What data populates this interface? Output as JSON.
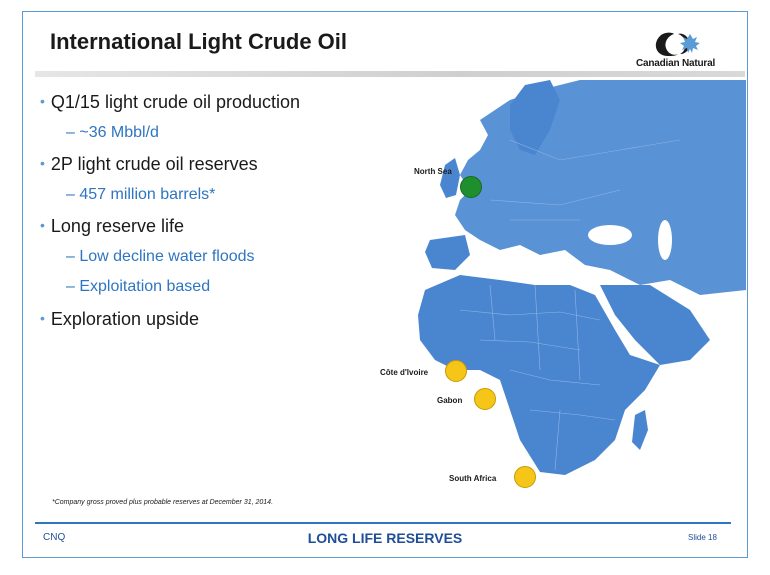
{
  "slide": {
    "title": "International Light Crude Oil",
    "logo_text": "Canadian Natural",
    "bullets": [
      {
        "text": "Q1/15 light crude oil production",
        "sub": [
          "~36 Mbbl/d"
        ]
      },
      {
        "text": "2P light crude oil reserves",
        "sub": [
          "457 million barrels*"
        ]
      },
      {
        "text": "Long reserve life",
        "sub": [
          "Low decline water floods",
          "Exploitation based"
        ]
      },
      {
        "text": "Exploration upside",
        "sub": []
      }
    ],
    "footnote": "*Company gross proved plus probable reserves at December 31, 2014.",
    "footer": {
      "left": "CNQ",
      "center": "LONG LIFE RESERVES",
      "right": "Slide 18"
    }
  },
  "map": {
    "locations": [
      {
        "name": "North Sea",
        "status": "producing",
        "color": "#1f8f2e"
      },
      {
        "name": "Côte d'Ivoire",
        "status": "other",
        "color": "#f5c518"
      },
      {
        "name": "Gabon",
        "status": "other",
        "color": "#f5c518"
      },
      {
        "name": "South Africa",
        "status": "other",
        "color": "#f5c518"
      }
    ],
    "land_color": "#4a86d0",
    "sea_color": "#ffffff"
  },
  "colors": {
    "accent": "#5b9bd5",
    "sub_bullet": "#2e75c2",
    "footer": "#1f4e99"
  }
}
